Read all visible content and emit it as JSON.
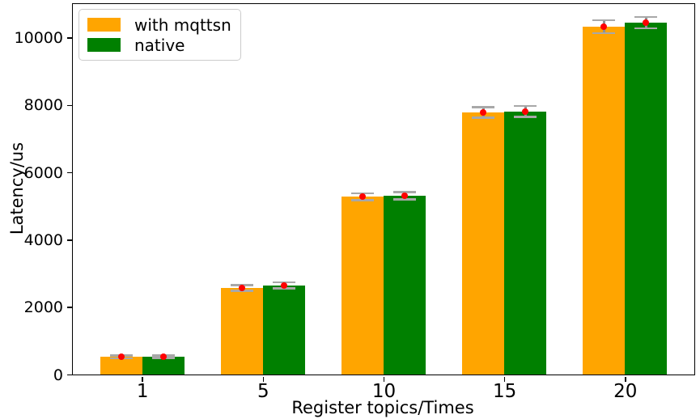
{
  "chart_data": {
    "type": "bar",
    "title": "",
    "xlabel": "Register topics/Times",
    "ylabel": "Latency/us",
    "categories": [
      "1",
      "5",
      "10",
      "15",
      "20"
    ],
    "series": [
      {
        "name": "with mqttsn",
        "color": "#FFA500",
        "values": [
          520,
          2570,
          5280,
          7780,
          10330
        ],
        "errors": [
          40,
          80,
          100,
          160,
          190
        ]
      },
      {
        "name": "native",
        "color": "#008000",
        "values": [
          530,
          2650,
          5310,
          7810,
          10450
        ],
        "errors": [
          40,
          90,
          105,
          165,
          170
        ]
      }
    ],
    "yticks": [
      0,
      2000,
      4000,
      6000,
      8000,
      10000
    ],
    "ylim": [
      0,
      11000
    ],
    "bar_width_fraction": 0.35,
    "legend_position": "upper-left",
    "error_color": "#909090",
    "error_cap_color": "#a8a8a8",
    "mean_marker_color": "#ff0000",
    "axis_color": "#000000",
    "background_color": "#ffffff",
    "grid": false
  }
}
